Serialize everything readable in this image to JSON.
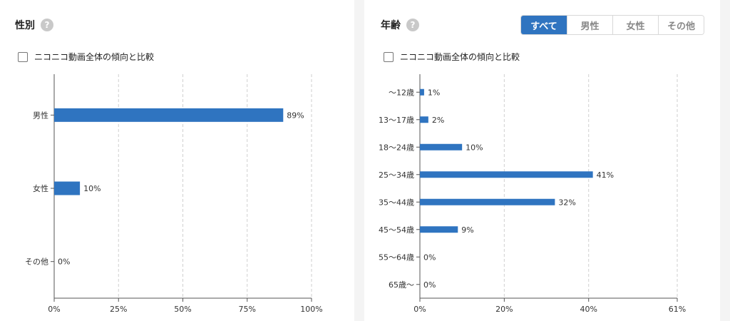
{
  "gender_panel": {
    "title": "性別",
    "help_icon": "question-circle-icon",
    "compare_label": "ニコニコ動画全体の傾向と比較",
    "compare_checked": false
  },
  "age_panel": {
    "title": "年齢",
    "help_icon": "question-circle-icon",
    "compare_label": "ニコニコ動画全体の傾向と比較",
    "compare_checked": false,
    "tabs": [
      {
        "label": "すべて",
        "active": true
      },
      {
        "label": "男性",
        "active": false
      },
      {
        "label": "女性",
        "active": false
      },
      {
        "label": "その他",
        "active": false
      }
    ]
  },
  "colors": {
    "bar": "#2f74c0",
    "tab_active": "#2f74c0",
    "grid": "#cfcfcf",
    "axis": "#555555"
  },
  "chart_data": [
    {
      "type": "bar",
      "orientation": "horizontal",
      "categories": [
        "男性",
        "女性",
        "その他"
      ],
      "values": [
        89,
        10,
        0
      ],
      "value_labels": [
        "89%",
        "10%",
        "0%"
      ],
      "xlim": [
        0,
        100
      ],
      "xticks": [
        0,
        25,
        50,
        75,
        100
      ],
      "xtick_labels": [
        "0%",
        "25%",
        "50%",
        "75%",
        "100%"
      ],
      "grid": "vertical-dashed"
    },
    {
      "type": "bar",
      "orientation": "horizontal",
      "categories": [
        "〜12歳",
        "13〜17歳",
        "18〜24歳",
        "25〜34歳",
        "35〜44歳",
        "45〜54歳",
        "55〜64歳",
        "65歳〜"
      ],
      "values": [
        1,
        2,
        10,
        41,
        32,
        9,
        0,
        0
      ],
      "value_labels": [
        "1%",
        "2%",
        "10%",
        "41%",
        "32%",
        "9%",
        "0%",
        "0%"
      ],
      "xlim": [
        0,
        61
      ],
      "xticks": [
        0,
        20,
        40,
        61
      ],
      "xtick_labels": [
        "0%",
        "20%",
        "40%",
        "61%"
      ],
      "grid": "vertical-dashed"
    }
  ]
}
